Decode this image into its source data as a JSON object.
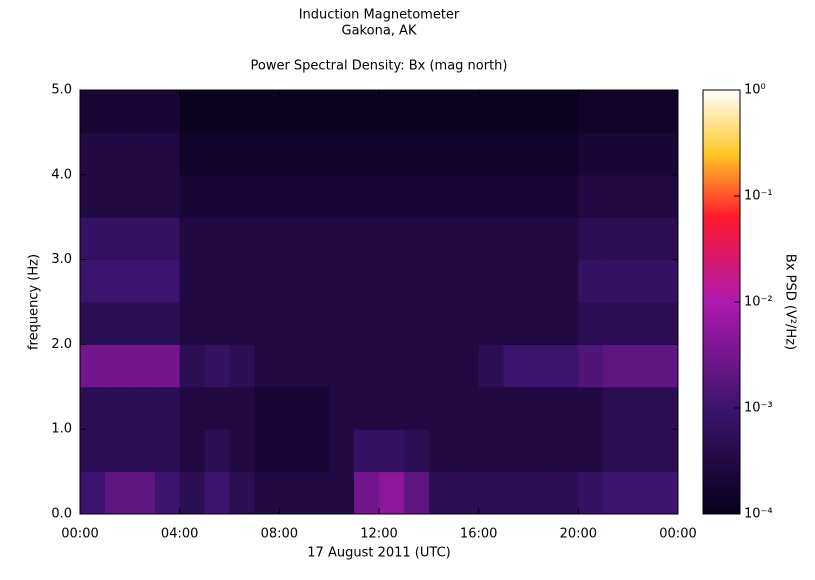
{
  "chart_data": {
    "type": "heatmap",
    "title": "Induction Magnetometer",
    "subtitle": "Gakona, AK",
    "plot_title": "Power Spectral Density: Bx (mag north)",
    "xlabel": "17 August 2011 (UTC)",
    "ylabel": "frequency (Hz)",
    "colorbar_label": "Bx PSD (V²/Hz)",
    "xbins": [
      0,
      1,
      2,
      3,
      4,
      5,
      6,
      7,
      8,
      9,
      10,
      11,
      12,
      13,
      14,
      15,
      16,
      17,
      18,
      19,
      20,
      21,
      22,
      23,
      24
    ],
    "ybins": [
      0,
      0.5,
      1,
      1.5,
      2,
      2.5,
      3,
      3.5,
      4,
      4.5,
      5
    ],
    "values": [
      [
        0.001,
        0.002,
        0.002,
        0.001,
        0.0005,
        0.001,
        0.0005,
        0.0003,
        0.0003,
        0.0003,
        0.0003,
        0.003,
        0.005,
        0.002,
        0.0005,
        0.0005,
        0.0005,
        0.0005,
        0.0005,
        0.0005,
        0.0007,
        0.001,
        0.001,
        0.001
      ],
      [
        0.0005,
        0.0005,
        0.0005,
        0.0005,
        0.0003,
        0.0005,
        0.0003,
        0.0002,
        0.0002,
        0.0002,
        0.0003,
        0.0007,
        0.0007,
        0.0005,
        0.0003,
        0.0003,
        0.0003,
        0.0003,
        0.0003,
        0.0003,
        0.0003,
        0.0005,
        0.0005,
        0.0005
      ],
      [
        0.0005,
        0.0005,
        0.0005,
        0.0005,
        0.0003,
        0.0003,
        0.0003,
        0.0002,
        0.0002,
        0.0002,
        0.0003,
        0.0003,
        0.0003,
        0.0003,
        0.0003,
        0.0003,
        0.0003,
        0.0003,
        0.0003,
        0.0003,
        0.0003,
        0.0005,
        0.0005,
        0.0005
      ],
      [
        0.003,
        0.003,
        0.003,
        0.003,
        0.0005,
        0.0007,
        0.0005,
        0.0003,
        0.0003,
        0.0003,
        0.0003,
        0.0003,
        0.0003,
        0.0003,
        0.0003,
        0.0003,
        0.0005,
        0.001,
        0.001,
        0.001,
        0.0015,
        0.002,
        0.002,
        0.002
      ],
      [
        0.0005,
        0.0005,
        0.0005,
        0.0005,
        0.0003,
        0.0003,
        0.0003,
        0.0003,
        0.0003,
        0.0003,
        0.0003,
        0.0003,
        0.0003,
        0.0003,
        0.0003,
        0.0003,
        0.0003,
        0.0003,
        0.0003,
        0.0003,
        0.0005,
        0.0005,
        0.0005,
        0.0005
      ],
      [
        0.001,
        0.001,
        0.001,
        0.001,
        0.0003,
        0.0003,
        0.0003,
        0.0003,
        0.0003,
        0.0003,
        0.0003,
        0.0003,
        0.0003,
        0.0003,
        0.0003,
        0.0003,
        0.0003,
        0.0003,
        0.0003,
        0.0003,
        0.0007,
        0.0007,
        0.0007,
        0.0007
      ],
      [
        0.0007,
        0.0007,
        0.0007,
        0.0007,
        0.0003,
        0.0003,
        0.0003,
        0.0003,
        0.0003,
        0.0003,
        0.0003,
        0.0003,
        0.0003,
        0.0003,
        0.0003,
        0.0003,
        0.0003,
        0.0003,
        0.0003,
        0.0003,
        0.0005,
        0.0005,
        0.0005,
        0.0005
      ],
      [
        0.0003,
        0.0003,
        0.0003,
        0.0003,
        0.0002,
        0.0002,
        0.0002,
        0.0002,
        0.0002,
        0.0002,
        0.0002,
        0.0002,
        0.0002,
        0.0002,
        0.0002,
        0.0002,
        0.0002,
        0.0002,
        0.0002,
        0.0002,
        0.0003,
        0.0003,
        0.0003,
        0.0003
      ],
      [
        0.0003,
        0.0003,
        0.0003,
        0.0003,
        0.00015,
        0.00015,
        0.00015,
        0.00015,
        0.00015,
        0.00015,
        0.00015,
        0.00015,
        0.00015,
        0.00015,
        0.00015,
        0.00015,
        0.00015,
        0.00015,
        0.00015,
        0.00015,
        0.0002,
        0.0002,
        0.0002,
        0.0002
      ],
      [
        0.0002,
        0.0002,
        0.0002,
        0.0002,
        0.00012,
        0.00012,
        0.00012,
        0.00012,
        0.00012,
        0.00012,
        0.00012,
        0.00012,
        0.00012,
        0.00012,
        0.00012,
        0.00012,
        0.00012,
        0.00012,
        0.00012,
        0.00012,
        0.00015,
        0.00015,
        0.00015,
        0.00015
      ]
    ],
    "xlim": [
      0,
      24
    ],
    "xticks": [
      {
        "value": 0,
        "label": "00:00"
      },
      {
        "value": 4,
        "label": "04:00"
      },
      {
        "value": 8,
        "label": "08:00"
      },
      {
        "value": 12,
        "label": "12:00"
      },
      {
        "value": 16,
        "label": "16:00"
      },
      {
        "value": 20,
        "label": "20:00"
      },
      {
        "value": 24,
        "label": "00:00"
      }
    ],
    "ylim": [
      0,
      5
    ],
    "yticks": [
      {
        "value": 0,
        "label": "0.0"
      },
      {
        "value": 1,
        "label": "1.0"
      },
      {
        "value": 2,
        "label": "2.0"
      },
      {
        "value": 3,
        "label": "3.0"
      },
      {
        "value": 4,
        "label": "4.0"
      },
      {
        "value": 5,
        "label": "5.0"
      }
    ],
    "zlim": [
      0.0001,
      1
    ],
    "zscale": "log",
    "zticks": [
      {
        "value": 0.0001,
        "label": "10⁻⁴"
      },
      {
        "value": 0.001,
        "label": "10⁻³"
      },
      {
        "value": 0.01,
        "label": "10⁻²"
      },
      {
        "value": 0.1,
        "label": "10⁻¹"
      },
      {
        "value": 1,
        "label": "10⁰"
      }
    ]
  }
}
